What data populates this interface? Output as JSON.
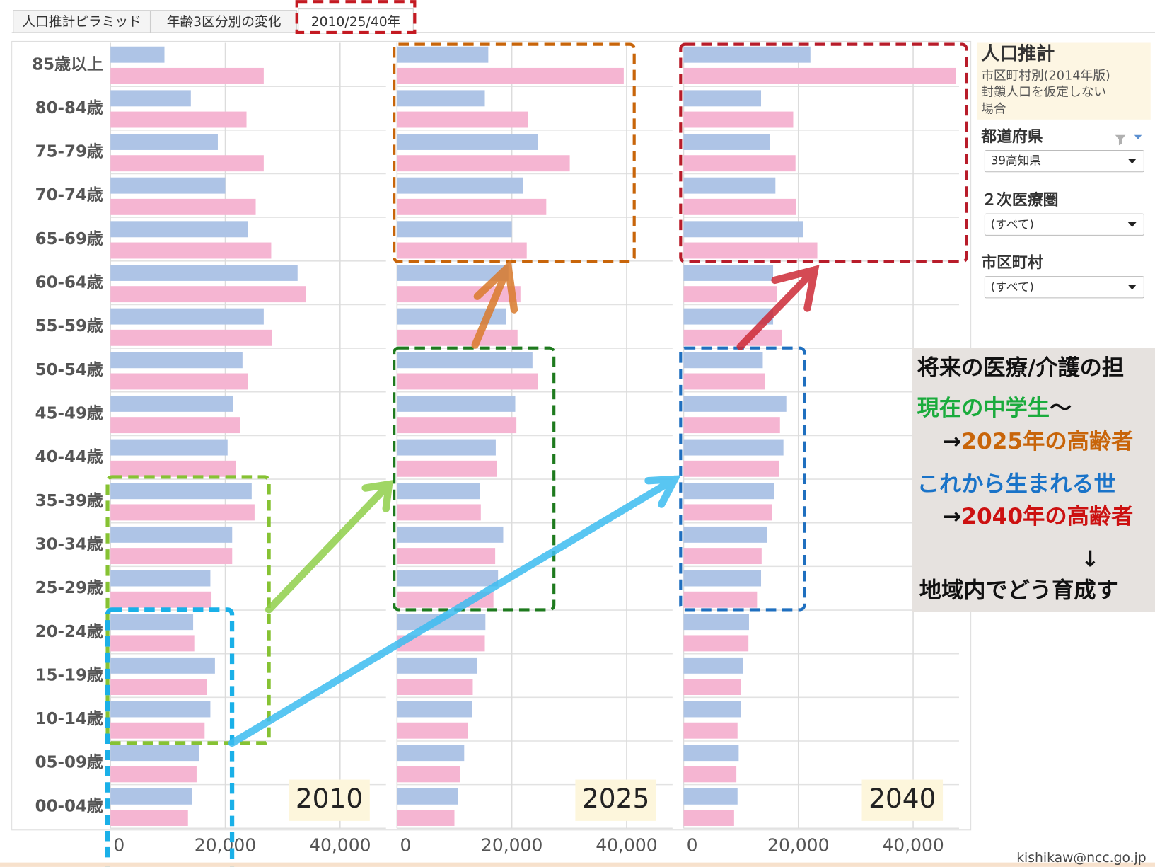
{
  "tabs": [
    "人口推計ピラミッド",
    "年齢3区分別の変化",
    "2010/25/40年"
  ],
  "chart_data": {
    "type": "bar",
    "orientation": "horizontal",
    "categories": [
      "85歳以上",
      "80-84歳",
      "75-79歳",
      "70-74歳",
      "65-69歳",
      "60-64歳",
      "55-59歳",
      "50-54歳",
      "45-49歳",
      "40-44歳",
      "35-39歳",
      "30-34歳",
      "25-29歳",
      "20-24歳",
      "15-19歳",
      "10-14歳",
      "05-09歳",
      "00-04歳"
    ],
    "xlim": [
      0,
      48000
    ],
    "xticks": [
      0,
      {
        "value": 20000,
        "label": "20,000"
      },
      {
        "value": 40000,
        "label": "40,000"
      }
    ],
    "grid": true,
    "panels": [
      {
        "label": "2010",
        "series": [
          {
            "color": "#aec4e6",
            "values": [
              9400,
              14000,
              18700,
              20000,
              24000,
              32600,
              26700,
              23000,
              21400,
              20400,
              24600,
              21200,
              17400,
              14400,
              18200,
              17400,
              15500,
              14200
            ]
          },
          {
            "color": "#f5b5d2",
            "values": [
              26700,
              23700,
              26700,
              25300,
              28000,
              34000,
              28100,
              24000,
              22600,
              21800,
              25100,
              21200,
              17600,
              14600,
              16800,
              16400,
              15000,
              13500
            ]
          }
        ]
      },
      {
        "label": "2025",
        "series": [
          {
            "color": "#aec4e6",
            "values": [
              15900,
              15300,
              24600,
              21900,
              20000,
              19400,
              19000,
              23600,
              20600,
              17200,
              14400,
              18500,
              17600,
              15400,
              14000,
              13100,
              11700,
              10600
            ]
          },
          {
            "color": "#f5b5d2",
            "values": [
              39500,
              22800,
              30100,
              26000,
              22600,
              21500,
              21000,
              24600,
              20800,
              17400,
              14600,
              17100,
              16800,
              15300,
              13200,
              12400,
              11000,
              10000
            ]
          }
        ]
      },
      {
        "label": "2040",
        "series": [
          {
            "color": "#aec4e6",
            "values": [
              22100,
              13500,
              15000,
              16000,
              20800,
              15600,
              15600,
              13800,
              17900,
              17400,
              15800,
              14500,
              13500,
              11400,
              10400,
              10000,
              9600,
              9400
            ]
          },
          {
            "color": "#f5b5d2",
            "values": [
              47400,
              19100,
              19500,
              19600,
              23300,
              16300,
              17100,
              14200,
              16800,
              16700,
              15400,
              13600,
              12800,
              11300,
              10000,
              9400,
              9200,
              8800
            ]
          }
        ]
      }
    ]
  },
  "sidebar": {
    "title": "人口推計",
    "subtitle": [
      "市区町村別(2014年版)",
      "封鎖人口を仮定しない",
      "場合"
    ],
    "filters": [
      {
        "label": "都道府県",
        "value": "39高知県"
      },
      {
        "label": "２次医療圏",
        "value": "(すべて)"
      },
      {
        "label": "市区町村",
        "value": "(すべて)"
      }
    ]
  },
  "annotation": {
    "heading": "将来の医療/介護の担",
    "line1": [
      "現在の中学生",
      "～"
    ],
    "line2": [
      "→",
      "2025年の高齢者"
    ],
    "line3": "これから生まれる世",
    "line4": [
      "→",
      "2040年の高齢者"
    ],
    "down": "↓",
    "closing": "地域内でどう育成す"
  },
  "footer": "kishikaw@ncc.go.jp"
}
